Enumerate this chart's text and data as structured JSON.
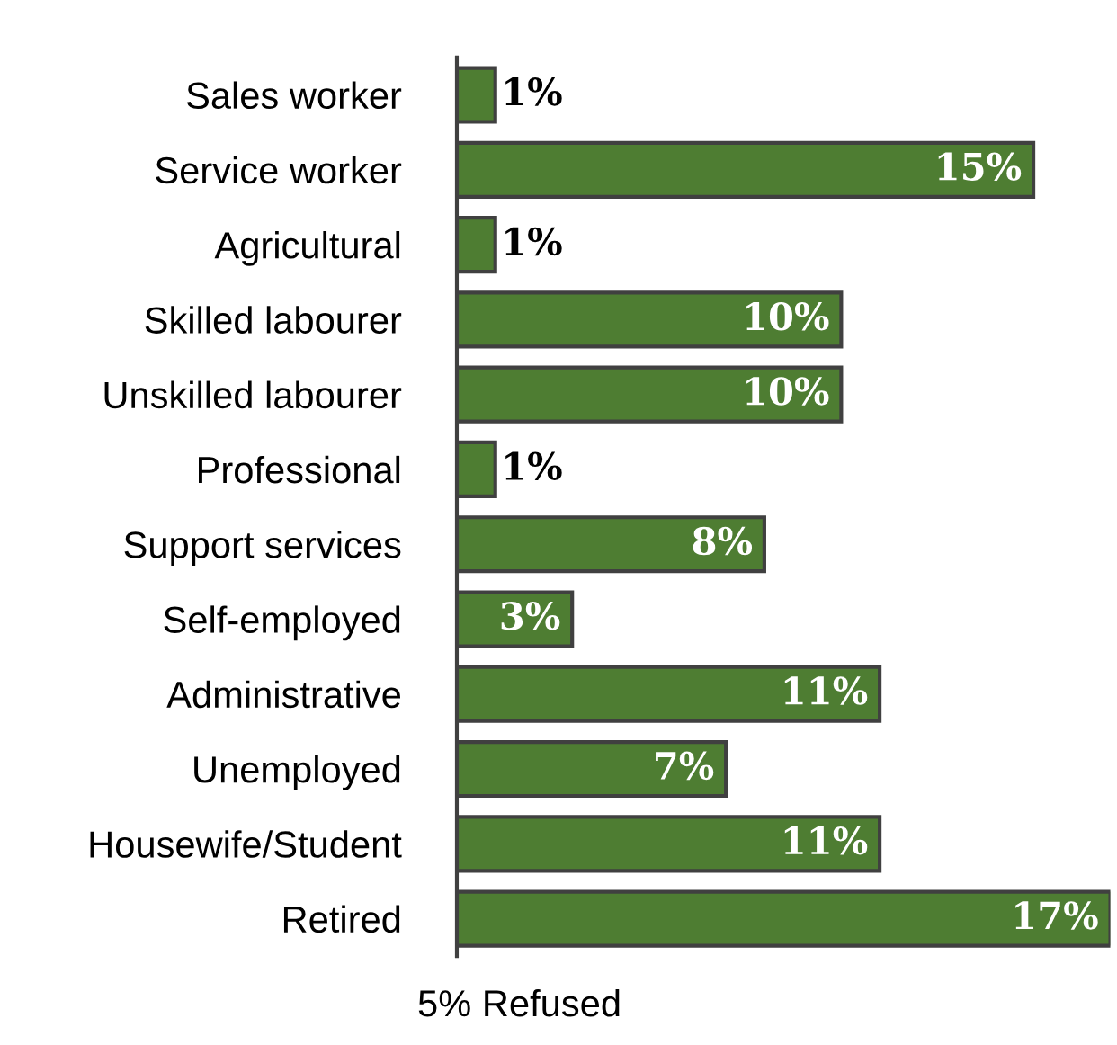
{
  "chart_data": {
    "type": "bar",
    "orientation": "horizontal",
    "categories": [
      "Sales worker",
      "Service worker",
      "Agricultural",
      "Skilled labourer",
      "Unskilled labourer",
      "Professional",
      "Support services",
      "Self-employed",
      "Administrative",
      "Unemployed",
      "Housewife/Student",
      "Retired"
    ],
    "values": [
      1,
      15,
      1,
      10,
      10,
      1,
      8,
      3,
      11,
      7,
      11,
      17
    ],
    "color": "#4e7d32",
    "value_labels": [
      "1%",
      "15%",
      "1%",
      "10%",
      "10%",
      "1%",
      "8%",
      "3%",
      "11%",
      "7%",
      "11%",
      "17%"
    ],
    "annotations": [
      "5% Refused"
    ]
  }
}
